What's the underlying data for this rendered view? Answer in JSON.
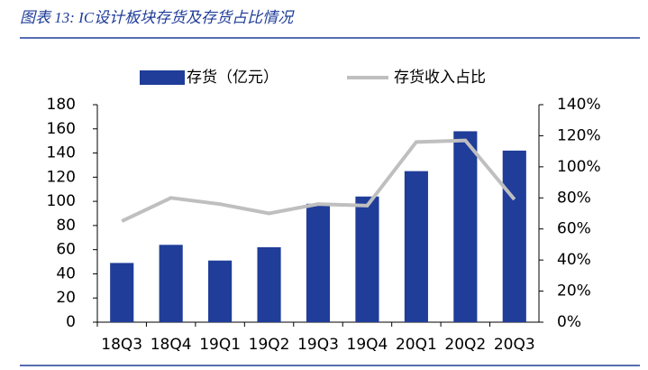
{
  "chart_data": {
    "type": "bar",
    "title": "图表 13:  IC设计板块存货及存货占比情况",
    "categories": [
      "18Q3",
      "18Q4",
      "19Q1",
      "19Q2",
      "19Q3",
      "19Q4",
      "20Q1",
      "20Q2",
      "20Q3"
    ],
    "series": [
      {
        "name": "存货（亿元）",
        "type": "bar",
        "color": "#1f3d99",
        "values": [
          49,
          64,
          51,
          62,
          98,
          104,
          125,
          158,
          142
        ]
      },
      {
        "name": "存货收入占比",
        "type": "line",
        "axis": "y2",
        "color": "#bfbfbf",
        "values": [
          65,
          80,
          76,
          70,
          76,
          75,
          116,
          117,
          79
        ]
      }
    ],
    "ylim": [
      0,
      180
    ],
    "yticks": [
      0,
      20,
      40,
      60,
      80,
      100,
      120,
      140,
      160,
      180
    ],
    "y2lim": [
      0,
      140
    ],
    "y2ticks": [
      {
        "value": 0,
        "label": "0%"
      },
      {
        "value": 20,
        "label": "20%"
      },
      {
        "value": 40,
        "label": "40%"
      },
      {
        "value": 60,
        "label": "60%"
      },
      {
        "value": 80,
        "label": "80%"
      },
      {
        "value": 100,
        "label": "100%"
      },
      {
        "value": 120,
        "label": "120%"
      },
      {
        "value": 140,
        "label": "140%"
      }
    ],
    "legend": "top"
  }
}
